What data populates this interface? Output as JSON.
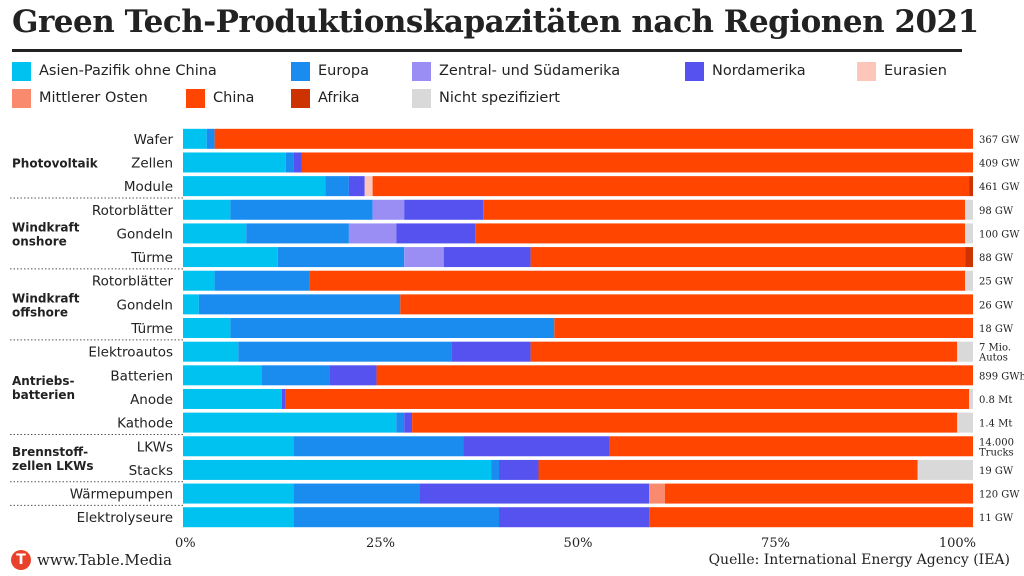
{
  "chart_data": {
    "type": "bar",
    "orientation": "horizontal-stacked-100",
    "title": "Green Tech-Produktionskapazitäten nach Regionen 2021",
    "source": "Quelle: International Energy Agency (IEA)",
    "brand": "www.Table.Media",
    "brand_icon": "T",
    "xlim": [
      0,
      100
    ],
    "xticks": [
      "0%",
      "25%",
      "50%",
      "75%",
      "100%"
    ],
    "legend_position": "top",
    "grid": false,
    "series": [
      {
        "name": "Asien-Pazifik ohne China",
        "color": "#00c2f0"
      },
      {
        "name": "Europa",
        "color": "#1a8cf0"
      },
      {
        "name": "Zentral- und Südamerika",
        "color": "#9a8ef5"
      },
      {
        "name": "Nordamerika",
        "color": "#5552ef"
      },
      {
        "name": "Eurasien",
        "color": "#fcc6bb"
      },
      {
        "name": "Mittlerer Osten",
        "color": "#fa8a6e"
      },
      {
        "name": "China",
        "color": "#ff4500"
      },
      {
        "name": "Afrika",
        "color": "#cc3300"
      },
      {
        "name": "Nicht spezifiziert",
        "color": "#d9d9d9"
      }
    ],
    "groups": [
      {
        "label": [
          "Photovoltaik"
        ],
        "rows": [
          0,
          1,
          2
        ]
      },
      {
        "label": [
          "Windkraft",
          "onshore"
        ],
        "rows": [
          3,
          4,
          5
        ]
      },
      {
        "label": [
          "Windkraft",
          "offshore"
        ],
        "rows": [
          6,
          7,
          8
        ]
      },
      {
        "label": [
          "Antriebs-",
          "batterien"
        ],
        "rows": [
          9,
          10,
          11,
          12
        ]
      },
      {
        "label": [
          "Brennstoff-",
          "zellen LKWs"
        ],
        "rows": [
          13,
          14
        ]
      },
      {
        "label": [],
        "rows": [
          15
        ]
      },
      {
        "label": [],
        "rows": [
          16
        ]
      }
    ],
    "categories": [
      "Wafer",
      "Zellen",
      "Module",
      "Rotorblätter",
      "Gondeln",
      "Türme",
      "Rotorblätter",
      "Gondeln",
      "Türme",
      "Elektroautos",
      "Batterien",
      "Anode",
      "Kathode",
      "LKWs",
      "Stacks",
      "Wärmepumpen",
      "Elektrolyseure"
    ],
    "capacity_labels": [
      [
        "367 GW"
      ],
      [
        "409 GW"
      ],
      [
        "461 GW"
      ],
      [
        "98 GW"
      ],
      [
        "100 GW"
      ],
      [
        "88 GW"
      ],
      [
        "25 GW"
      ],
      [
        "26 GW"
      ],
      [
        "18 GW"
      ],
      [
        "7 Mio.",
        "Autos"
      ],
      [
        "899 GWh"
      ],
      [
        "0.8 Mt"
      ],
      [
        "1.4 Mt"
      ],
      [
        "14.000",
        "Trucks"
      ],
      [
        "19 GW"
      ],
      [
        "120 GW"
      ],
      [
        "11 GW"
      ]
    ],
    "values": [
      [
        3,
        1,
        0,
        0,
        0,
        0,
        96,
        0,
        0
      ],
      [
        13,
        1,
        0,
        1,
        0,
        0,
        85,
        0,
        0
      ],
      [
        18,
        3,
        0,
        2,
        1,
        0,
        75.5,
        0.5,
        0
      ],
      [
        6,
        18,
        4,
        10,
        0,
        0,
        61,
        0,
        1
      ],
      [
        8,
        13,
        6,
        10,
        0,
        0,
        62,
        0,
        1
      ],
      [
        12,
        16,
        5,
        11,
        0,
        0,
        55,
        1,
        0
      ],
      [
        4,
        12,
        0,
        0,
        0,
        0,
        83,
        0,
        1
      ],
      [
        2,
        25.5,
        0,
        0,
        0,
        0,
        72.5,
        0,
        0
      ],
      [
        6,
        41,
        0,
        0,
        0,
        0,
        53,
        0,
        0
      ],
      [
        7,
        27,
        0,
        10,
        0,
        0,
        54,
        0,
        2
      ],
      [
        10,
        8.5,
        0,
        6,
        0,
        0,
        75.5,
        0,
        0
      ],
      [
        12.5,
        0,
        0,
        0.5,
        0,
        0,
        86.5,
        0,
        0.5
      ],
      [
        27,
        1,
        0,
        1,
        0,
        0,
        69,
        0,
        2
      ],
      [
        14,
        21.5,
        0,
        18.5,
        0,
        0,
        46,
        0,
        0
      ],
      [
        39,
        1,
        0,
        5,
        0,
        0,
        48,
        0,
        7
      ],
      [
        14,
        16,
        0,
        29,
        0,
        2,
        39,
        0,
        0
      ],
      [
        14,
        26,
        0,
        19,
        0,
        0,
        41,
        0,
        0
      ]
    ]
  }
}
